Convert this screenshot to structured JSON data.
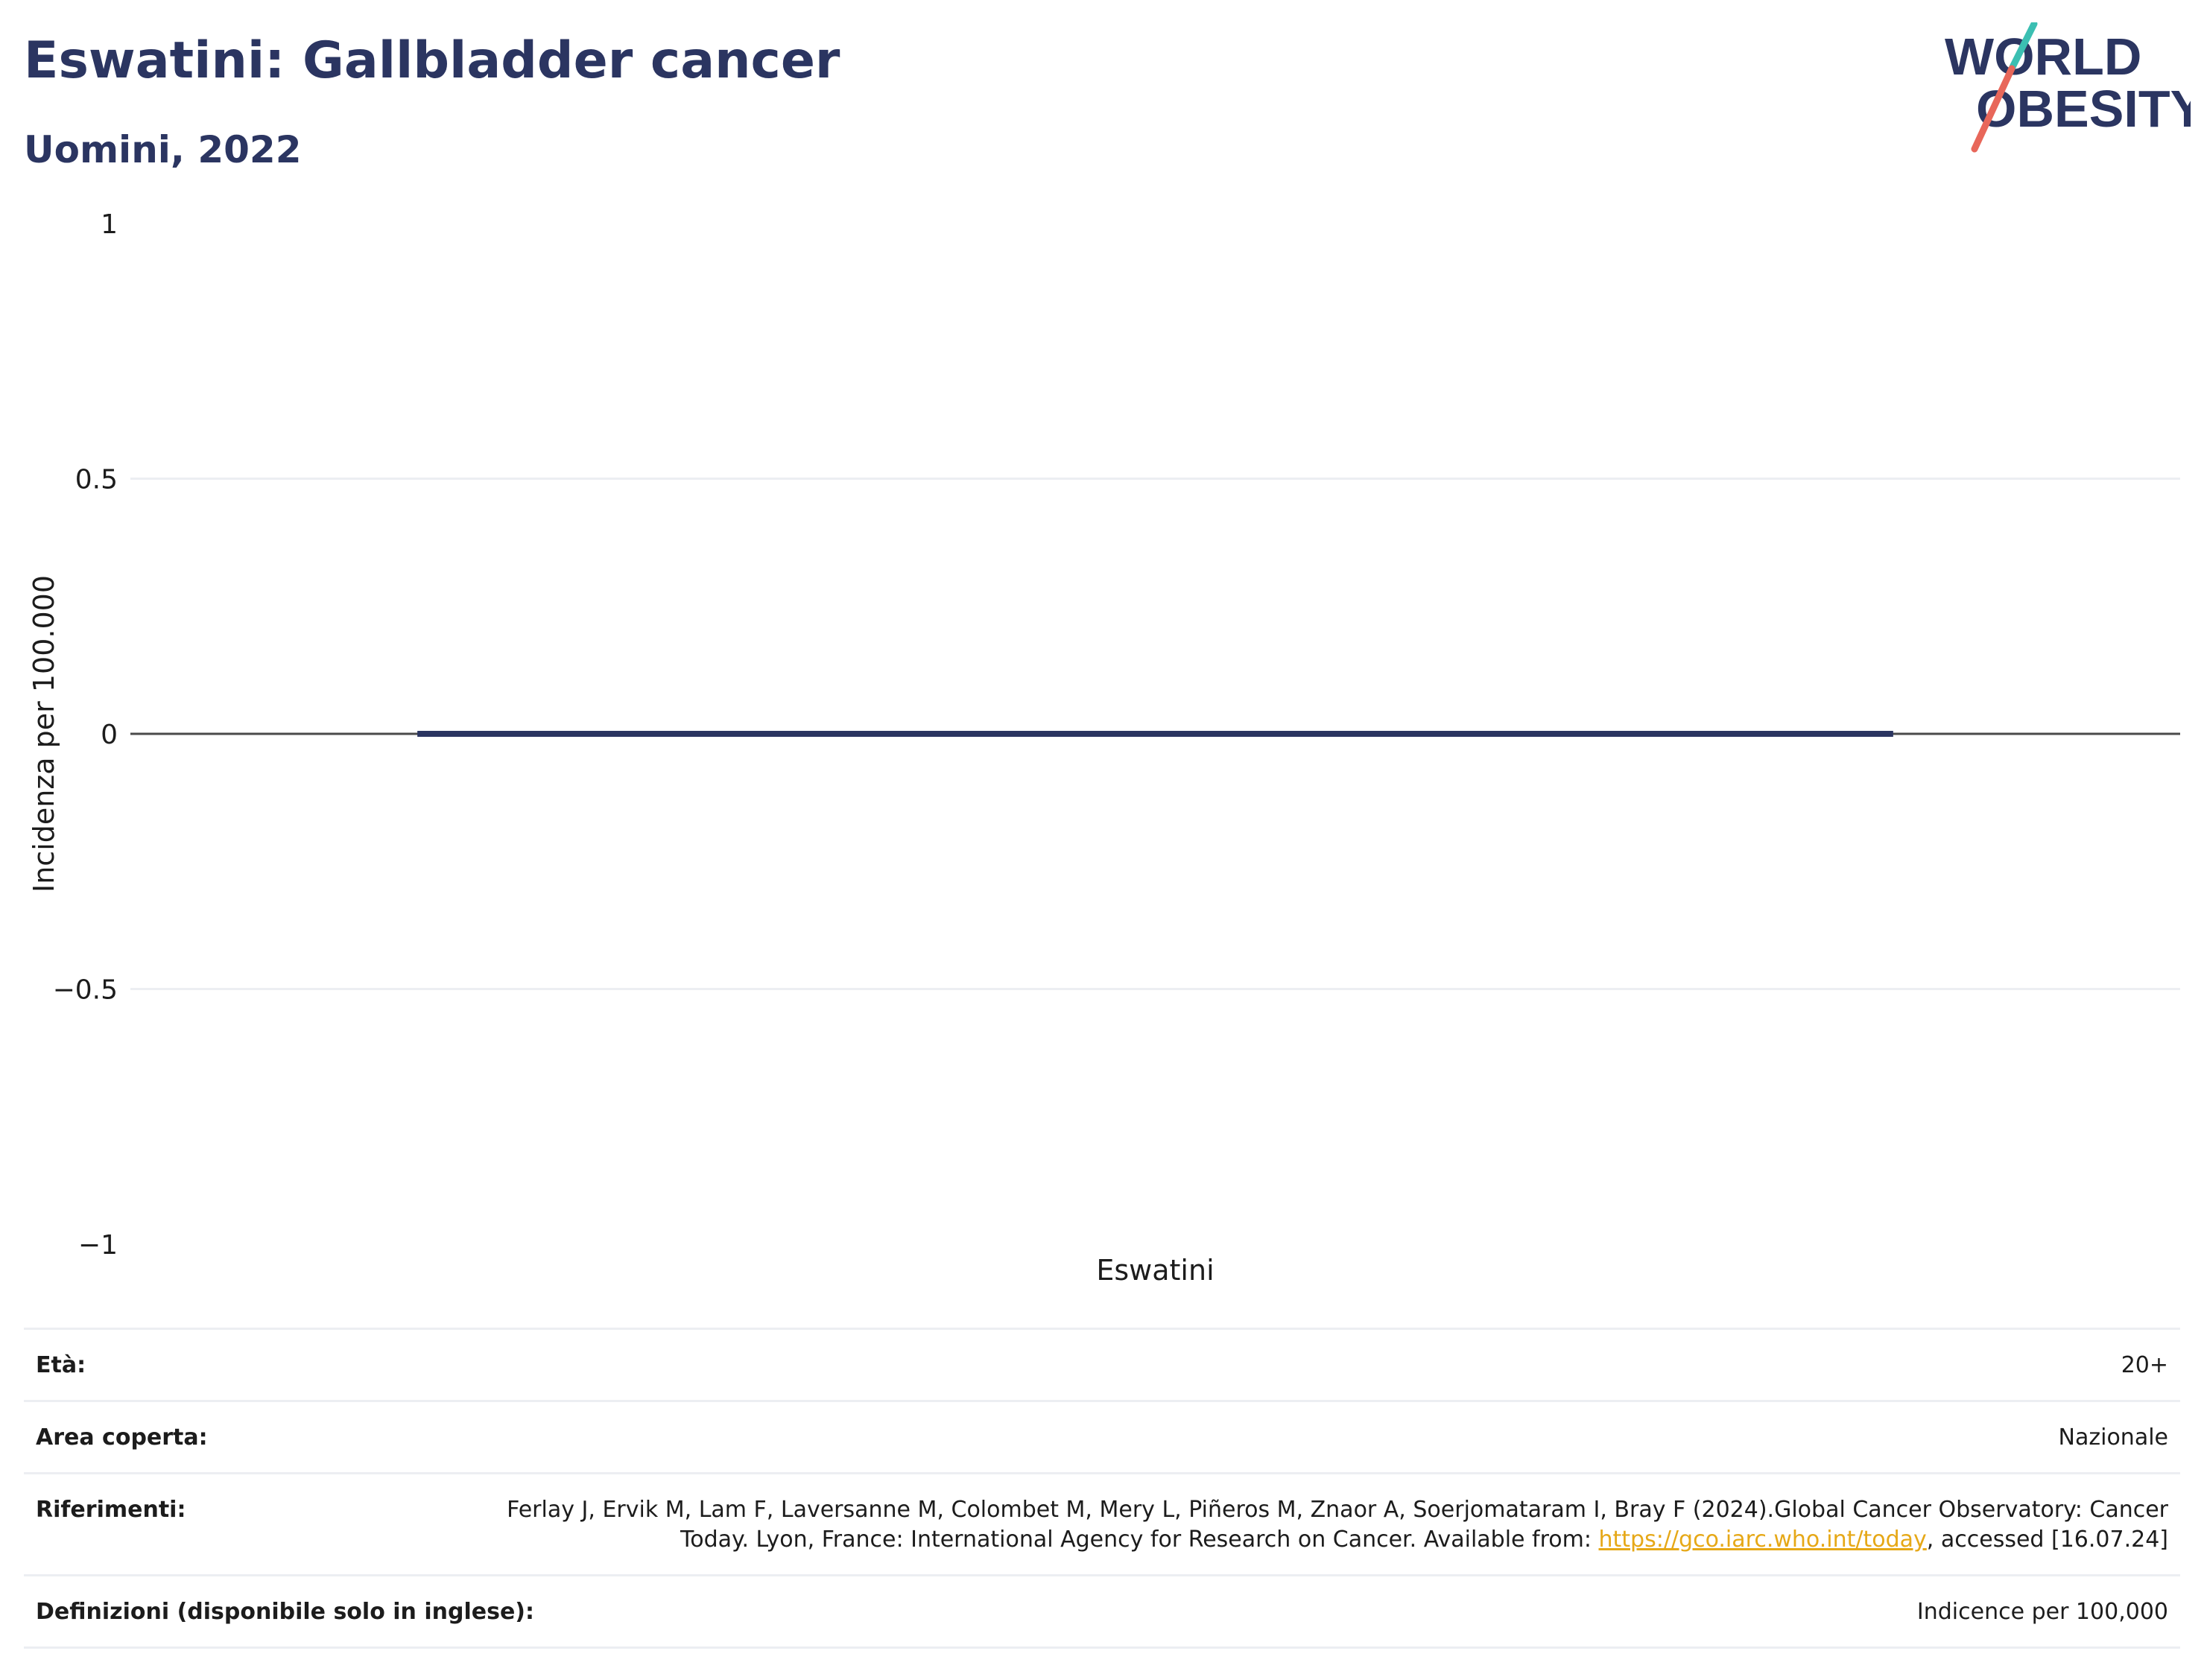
{
  "header": {
    "title": "Eswatini: Gallbladder cancer",
    "subtitle": "Uomini, 2022"
  },
  "logo": {
    "line1": "WORLD",
    "line2": "OBESITY",
    "colors": {
      "text": "#2b3561",
      "slash_top": "#3bbfb2",
      "slash_bottom": "#e8675a"
    }
  },
  "chart_data": {
    "type": "bar",
    "categories": [
      "Eswatini"
    ],
    "series": [
      {
        "values": [
          0
        ]
      }
    ],
    "ylabel": "Incidenza per 100.000",
    "xlabel": "",
    "ylim": [
      -1,
      1
    ],
    "yticks": [
      1,
      0.5,
      0,
      -0.5,
      -1
    ],
    "ytick_labels": [
      "1",
      "0.5",
      "0",
      "−0.5",
      "−1"
    ],
    "grid": true,
    "bar_color": "#2b3561"
  },
  "meta": {
    "age": {
      "label": "Età:",
      "value": "20+"
    },
    "area": {
      "label": "Area coperta:",
      "value": "Nazionale"
    },
    "references": {
      "label": "Riferimenti:",
      "text_before": "Ferlay J, Ervik M, Lam F, Laversanne M, Colombet M, Mery L, Piñeros M, Znaor A, Soerjomataram I, Bray F (2024).Global Cancer Observatory: Cancer Today. Lyon, France: International Agency for Research on Cancer. Available from: ",
      "link": "https://gco.iarc.who.int/today",
      "text_after": ", accessed [16.07.24]"
    },
    "definitions": {
      "label": "Definizioni (disponibile solo in inglese):",
      "value": "Indicence per 100,000"
    }
  }
}
